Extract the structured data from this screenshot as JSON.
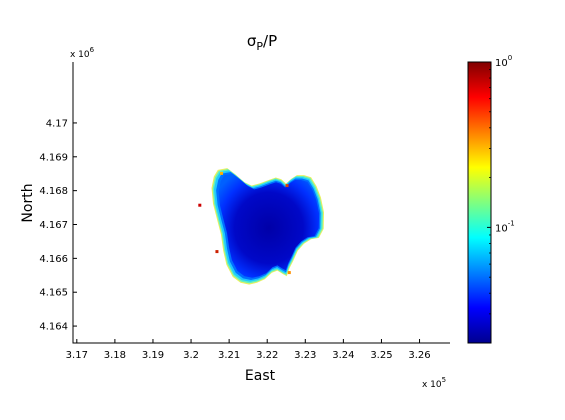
{
  "chart_data": {
    "type": "heatmap",
    "title": {
      "base": "σ",
      "sub": "P",
      "rest": "/P"
    },
    "xlabel": "East",
    "ylabel": "North",
    "x_multiplier": {
      "base": "x 10",
      "exp": "5"
    },
    "y_multiplier": {
      "base": "x 10",
      "exp": "6"
    },
    "xlim": [
      3.169,
      3.268
    ],
    "ylim": [
      4.1635,
      4.1718
    ],
    "x_ticks": [
      3.17,
      3.18,
      3.19,
      3.2,
      3.21,
      3.22,
      3.23,
      3.24,
      3.25,
      3.26
    ],
    "x_tick_labels": [
      "3.17",
      "3.18",
      "3.19",
      "3.2",
      "3.21",
      "3.22",
      "3.23",
      "3.24",
      "3.25",
      "3.26"
    ],
    "y_ticks": [
      4.164,
      4.165,
      4.166,
      4.167,
      4.168,
      4.169,
      4.17
    ],
    "y_tick_labels": [
      "4.164",
      "4.165",
      "4.166",
      "4.167",
      "4.168",
      "4.169",
      "4.17"
    ],
    "colorbar": {
      "scale": "log",
      "range": [
        0.02,
        1
      ],
      "colormap": "jet",
      "ticks": [
        {
          "value": 1,
          "base": "10",
          "exp": "0"
        },
        {
          "value": 0.1,
          "base": "10",
          "exp": "-1"
        }
      ]
    },
    "region": {
      "description_values": "masked lake area; interior ratio ~0.02-0.04, rising to ~0.1-1 at the shoreline",
      "interior_value": 0.03,
      "edge_value": 0.5,
      "outline": [
        [
          3.2074,
          4.16857
        ],
        [
          3.2098,
          4.16862
        ],
        [
          3.2118,
          4.16845
        ],
        [
          3.2142,
          4.16822
        ],
        [
          3.216,
          4.16812
        ],
        [
          3.218,
          4.16818
        ],
        [
          3.2204,
          4.16828
        ],
        [
          3.2222,
          4.16835
        ],
        [
          3.2236,
          4.1683
        ],
        [
          3.2248,
          4.16818
        ],
        [
          3.2262,
          4.16832
        ],
        [
          3.2276,
          4.16842
        ],
        [
          3.2294,
          4.16842
        ],
        [
          3.2312,
          4.16836
        ],
        [
          3.2326,
          4.1681
        ],
        [
          3.2337,
          4.16778
        ],
        [
          3.2345,
          4.16735
        ],
        [
          3.2344,
          4.16688
        ],
        [
          3.2332,
          4.16662
        ],
        [
          3.2312,
          4.16658
        ],
        [
          3.2294,
          4.16645
        ],
        [
          3.2278,
          4.16625
        ],
        [
          3.2266,
          4.16595
        ],
        [
          3.2257,
          4.16575
        ],
        [
          3.225,
          4.16552
        ],
        [
          3.224,
          4.16558
        ],
        [
          3.2226,
          4.16568
        ],
        [
          3.2212,
          4.16562
        ],
        [
          3.2194,
          4.16543
        ],
        [
          3.2174,
          4.16533
        ],
        [
          3.2154,
          4.16528
        ],
        [
          3.2132,
          4.16533
        ],
        [
          3.2112,
          4.1655
        ],
        [
          3.2096,
          4.16585
        ],
        [
          3.2088,
          4.16625
        ],
        [
          3.2082,
          4.16672
        ],
        [
          3.2072,
          4.16715
        ],
        [
          3.2062,
          4.1676
        ],
        [
          3.2058,
          4.16805
        ],
        [
          3.2064,
          4.16838
        ]
      ]
    }
  }
}
